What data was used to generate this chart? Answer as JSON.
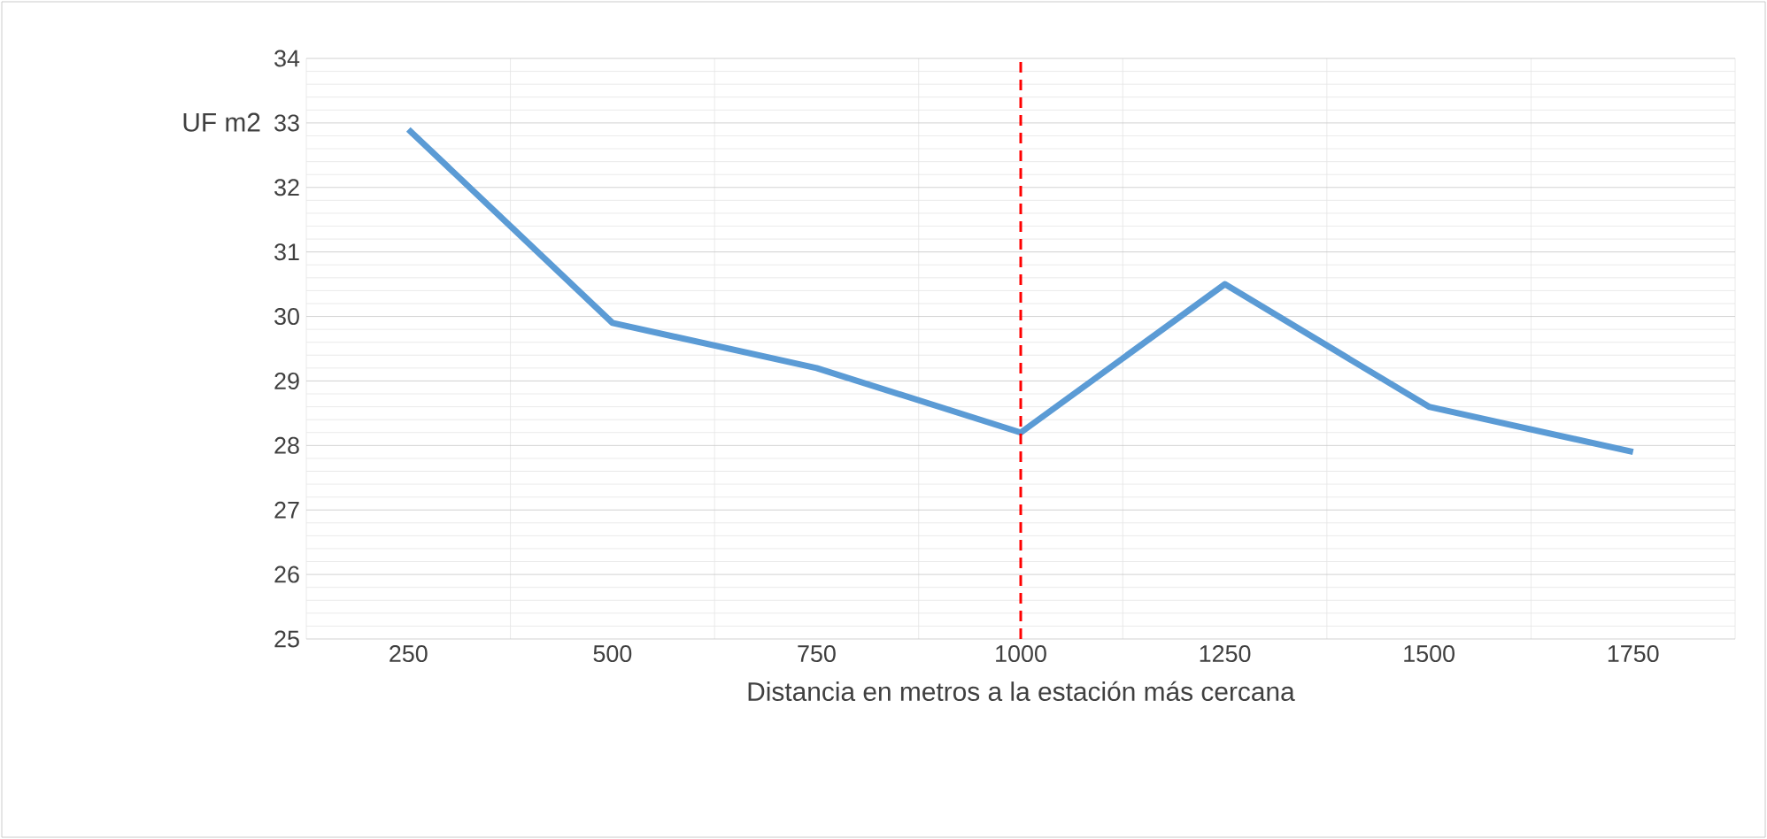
{
  "chart_data": {
    "type": "line",
    "xlabel": "Distancia en metros a la estación más cercana",
    "ylabel": "UF m2",
    "categories": [
      "250",
      "500",
      "750",
      "1000",
      "1250",
      "1500",
      "1750"
    ],
    "series": [
      {
        "color": "#5b9bd5",
        "values": [
          32.9,
          29.9,
          29.2,
          28.2,
          30.5,
          28.6,
          27.9
        ]
      }
    ],
    "ylim": [
      25,
      34
    ],
    "yticks": [
      25,
      26,
      27,
      28,
      29,
      30,
      31,
      32,
      33,
      34
    ],
    "grid": true,
    "marker": "none",
    "line_style": "solid",
    "ref_lines": [
      {
        "axis": "x",
        "value": "1000",
        "color": "#ff0000",
        "line_style": "dashed"
      }
    ]
  }
}
